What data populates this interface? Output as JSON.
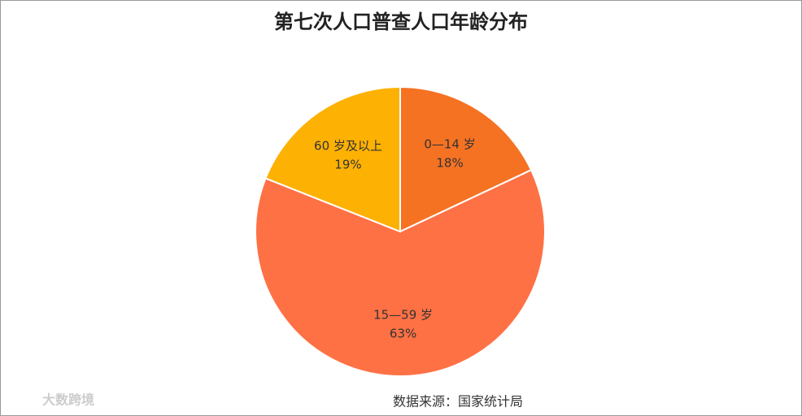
{
  "chart_data": {
    "type": "pie",
    "title": "第七次人口普查人口年龄分布",
    "categories": [
      "0—14 岁",
      "15—59 岁",
      "60 岁及以上"
    ],
    "values": [
      18,
      63,
      19
    ],
    "value_labels": [
      "18%",
      "63%",
      "19%"
    ],
    "colors": [
      "#f57223",
      "#fe7145",
      "#fdb103"
    ],
    "source": "数据来源：国家统计局",
    "watermark": "大数跨境"
  }
}
